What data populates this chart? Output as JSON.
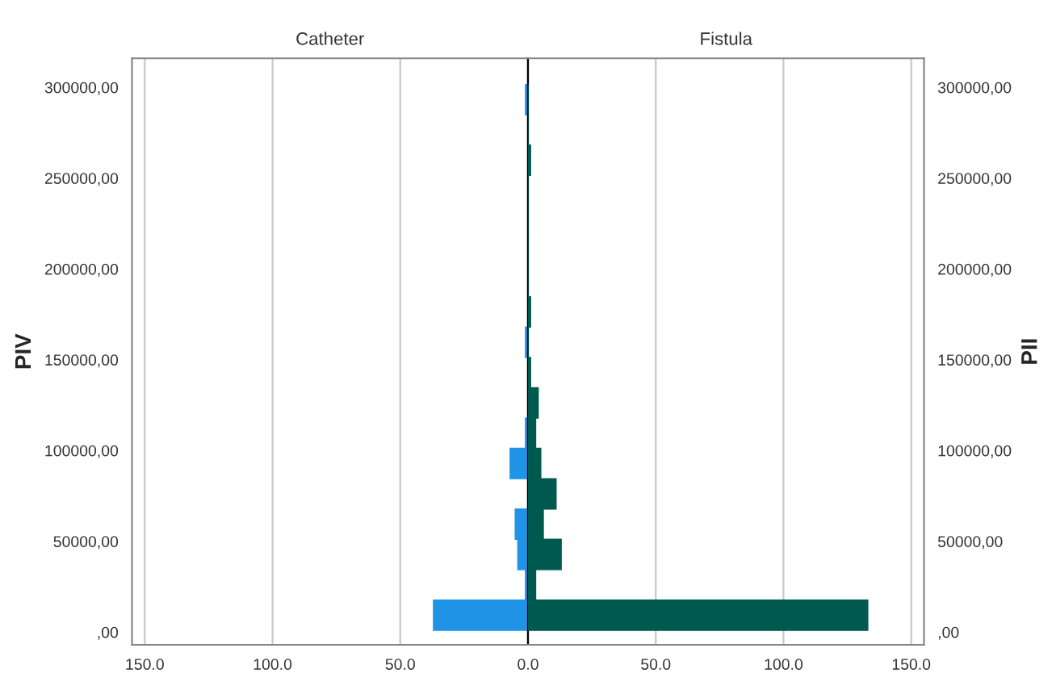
{
  "chart_data": [
    {
      "type": "histogram",
      "orientation": "horizontal",
      "title": "Catheter",
      "ylabel": "PIV",
      "color": "#1f94e6",
      "bins": [
        1000,
        17700,
        34400,
        51100,
        67800,
        84500,
        101200,
        117900,
        134600,
        151300,
        168000,
        184700,
        201400,
        218100,
        234800,
        251500,
        268200,
        284900,
        301600
      ],
      "values": [
        37,
        1,
        4,
        5,
        0,
        7,
        1,
        0,
        0,
        1,
        0,
        0,
        0,
        0,
        0,
        0,
        0,
        1
      ],
      "xlim": [
        155,
        0
      ],
      "xticks": [
        {
          "value": 150,
          "label": "150.0"
        },
        {
          "value": 100,
          "label": "100.0"
        },
        {
          "value": 50,
          "label": "50.0"
        },
        {
          "value": 0,
          "label": "0.0"
        }
      ],
      "ylim": [
        -7000,
        316000
      ],
      "yticks": [
        {
          "value": 0,
          "label": ",00"
        },
        {
          "value": 50000,
          "label": "50000,00"
        },
        {
          "value": 100000,
          "label": "100000,00"
        },
        {
          "value": 150000,
          "label": "150000,00"
        },
        {
          "value": 200000,
          "label": "200000,00"
        },
        {
          "value": 250000,
          "label": "250000,00"
        },
        {
          "value": 300000,
          "label": "300000,00"
        }
      ],
      "grid": "x",
      "legend": false
    },
    {
      "type": "histogram",
      "orientation": "horizontal",
      "title": "Fistula",
      "ylabel": "PII",
      "color": "#00594f",
      "bins": [
        1000,
        17700,
        34400,
        51100,
        67800,
        84500,
        101200,
        117900,
        134600,
        151300,
        168000,
        184700,
        201400,
        218100,
        234800,
        251500,
        268200,
        284900,
        301600
      ],
      "values": [
        133,
        3,
        13,
        6,
        11,
        5,
        3,
        4,
        1,
        0,
        1,
        0,
        0,
        0,
        0,
        1,
        0,
        0
      ],
      "xlim": [
        0,
        155
      ],
      "xticks": [
        {
          "value": 0,
          "label": null
        },
        {
          "value": 50,
          "label": "50.0"
        },
        {
          "value": 100,
          "label": "100.0"
        },
        {
          "value": 150,
          "label": "150.0"
        }
      ],
      "ylim": [
        -7000,
        316000
      ],
      "yticks": [
        {
          "value": 0,
          "label": ",00"
        },
        {
          "value": 50000,
          "label": "50000,00"
        },
        {
          "value": 100000,
          "label": "100000,00"
        },
        {
          "value": 150000,
          "label": "150000,00"
        },
        {
          "value": 200000,
          "label": "200000,00"
        },
        {
          "value": 250000,
          "label": "250000,00"
        },
        {
          "value": 300000,
          "label": "300000,00"
        }
      ],
      "grid": "x",
      "legend": false
    }
  ]
}
